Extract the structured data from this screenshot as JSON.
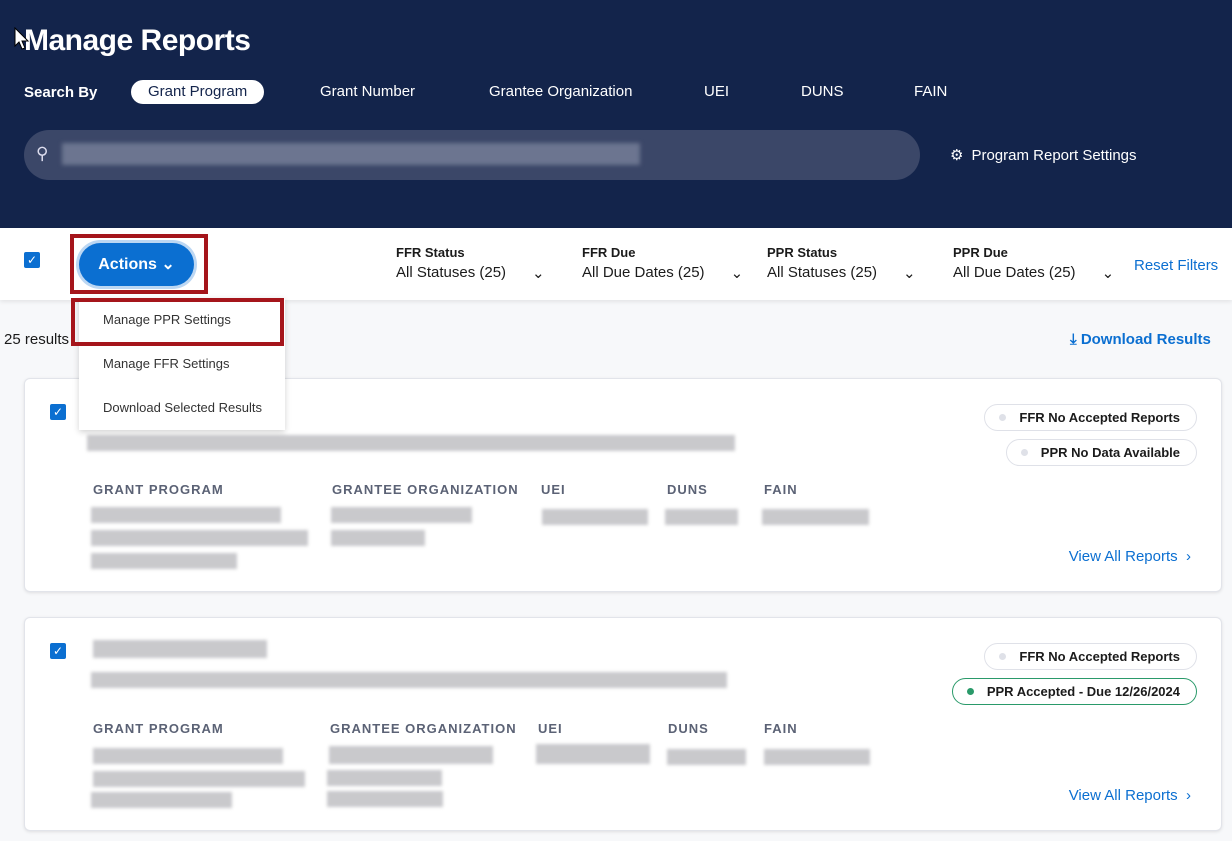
{
  "header": {
    "title": "Manage Reports",
    "search_by_label": "Search By",
    "options": [
      "Grant Program",
      "Grant Number",
      "Grantee Organization",
      "UEI",
      "DUNS",
      "FAIN"
    ],
    "selected": "Grant Program",
    "program_report_settings": "Program Report Settings"
  },
  "toolbar": {
    "actions_label": "Actions",
    "filters": [
      {
        "label": "FFR Status",
        "value": "All Statuses (25)"
      },
      {
        "label": "FFR Due",
        "value": "All Due Dates (25)"
      },
      {
        "label": "PPR Status",
        "value": "All Statuses (25)"
      },
      {
        "label": "PPR Due",
        "value": "All Due Dates (25)"
      }
    ],
    "reset": "Reset Filters"
  },
  "menu": {
    "items": [
      "Manage PPR Settings",
      "Manage FFR Settings",
      "Download Selected Results"
    ]
  },
  "results": {
    "count": "25 results",
    "download": "Download Results"
  },
  "columns": [
    "GRANT PROGRAM",
    "GRANTEE ORGANIZATION",
    "UEI",
    "DUNS",
    "FAIN"
  ],
  "cards": [
    {
      "badges": [
        {
          "text": "FFR No Accepted Reports",
          "status": "neutral"
        },
        {
          "text": "PPR No Data Available",
          "status": "neutral"
        }
      ],
      "link": "View All Reports"
    },
    {
      "badges": [
        {
          "text": "FFR No Accepted Reports",
          "status": "neutral"
        },
        {
          "text": "PPR Accepted - Due 12/26/2024",
          "status": "accepted"
        }
      ],
      "link": "View All Reports"
    }
  ],
  "colors": {
    "header": "#13244b",
    "accent": "#0b6fd1",
    "highlight": "#a5151b",
    "accepted": "#2a9a6a"
  }
}
